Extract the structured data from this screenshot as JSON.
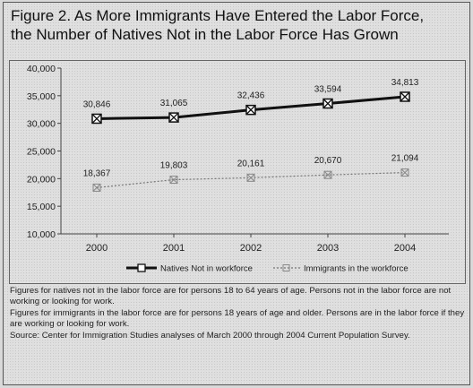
{
  "figure": {
    "title_line1": "Figure 2. As More Immigrants Have Entered the Labor Force,",
    "title_line2": "the Number of Natives Not in the Labor Force Has Grown"
  },
  "chart_data": {
    "type": "line",
    "title": "",
    "xlabel": "",
    "ylabel": "",
    "categories": [
      "2000",
      "2001",
      "2002",
      "2003",
      "2004"
    ],
    "ylim": [
      10000,
      40000
    ],
    "yticks": [
      10000,
      15000,
      20000,
      25000,
      30000,
      35000,
      40000
    ],
    "ytick_labels": [
      "10,000",
      "15,000",
      "20,000",
      "25,000",
      "30,000",
      "35,000",
      "40,000"
    ],
    "grid": false,
    "legend_position": "bottom",
    "series": [
      {
        "name": "Natives Not in workforce",
        "values": [
          30846,
          31065,
          32436,
          33594,
          34813
        ],
        "labels": [
          "30,846",
          "31,065",
          "32,436",
          "33,594",
          "34,813"
        ],
        "color": "#111111",
        "style": "solid",
        "marker": "square"
      },
      {
        "name": "Immigrants in the workforce",
        "values": [
          18367,
          19803,
          20161,
          20670,
          21094
        ],
        "labels": [
          "18,367",
          "19,803",
          "20,161",
          "20,670",
          "21,094"
        ],
        "color": "#777777",
        "style": "dotted",
        "marker": "square-x"
      }
    ]
  },
  "notes": {
    "line1": "Figures for natives not in the labor force are for persons 18 to 64 years of age. Persons not in the labor force are not working or looking for work.",
    "line2": "Figures for immigrants in the labor force are for persons 18 years of age and older. Persons are in the labor force if they are working or looking for work.",
    "line3": "Source: Center for Immigration Studies analyses of March 2000 through 2004 Current Population Survey."
  }
}
